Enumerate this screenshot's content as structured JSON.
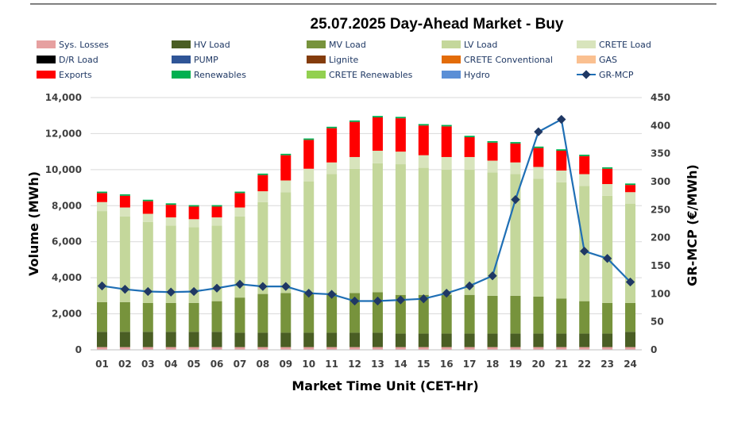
{
  "chart_data": {
    "type": "bar",
    "title": "25.07.2025  Day-Ahead Market - Buy",
    "xlabel": "Market Time Unit (CET-Hr)",
    "ylabel": "Volume (MWh)",
    "y2label": "GR-MCP (€/MWh)",
    "ylim": [
      0,
      14000
    ],
    "y2lim": [
      0,
      450
    ],
    "yticks": [
      "0",
      "2,000",
      "4,000",
      "6,000",
      "8,000",
      "10,000",
      "12,000",
      "14,000"
    ],
    "y2ticks": [
      "0",
      "50",
      "100",
      "150",
      "200",
      "250",
      "300",
      "350",
      "400",
      "450"
    ],
    "categories": [
      "01",
      "02",
      "03",
      "04",
      "05",
      "06",
      "07",
      "08",
      "09",
      "10",
      "11",
      "12",
      "13",
      "14",
      "15",
      "16",
      "17",
      "18",
      "19",
      "20",
      "21",
      "22",
      "23",
      "24"
    ],
    "legend": [
      {
        "name": "Sys. Losses",
        "color": "#e6a0a0",
        "kind": "box"
      },
      {
        "name": "HV Load",
        "color": "#4a5e24",
        "kind": "box"
      },
      {
        "name": "MV Load",
        "color": "#77933c",
        "kind": "box"
      },
      {
        "name": "LV Load",
        "color": "#c4d79b",
        "kind": "box"
      },
      {
        "name": "CRETE Load",
        "color": "#d8e4bc",
        "kind": "box"
      },
      {
        "name": "D/R Load",
        "color": "#000000",
        "kind": "box"
      },
      {
        "name": "PUMP",
        "color": "#2f5597",
        "kind": "box"
      },
      {
        "name": "Lignite",
        "color": "#843c0c",
        "kind": "box"
      },
      {
        "name": "CRETE Conventional",
        "color": "#e36c09",
        "kind": "box"
      },
      {
        "name": "GAS",
        "color": "#fac090",
        "kind": "box"
      },
      {
        "name": "Exports",
        "color": "#ff0000",
        "kind": "box"
      },
      {
        "name": "Renewables",
        "color": "#00b050",
        "kind": "box"
      },
      {
        "name": "CRETE Renewables",
        "color": "#92d050",
        "kind": "box"
      },
      {
        "name": "Hydro",
        "color": "#5b8fd6",
        "kind": "box"
      },
      {
        "name": "GR-MCP",
        "color": "#1f6fb5",
        "kind": "line"
      }
    ],
    "series": [
      {
        "name": "Sys. Losses",
        "color": "#e6a0a0",
        "values": [
          150,
          150,
          150,
          150,
          150,
          150,
          150,
          150,
          150,
          150,
          150,
          150,
          150,
          150,
          150,
          150,
          150,
          150,
          150,
          150,
          150,
          150,
          150,
          150
        ]
      },
      {
        "name": "HV Load",
        "color": "#4a5e24",
        "values": [
          850,
          850,
          850,
          850,
          850,
          850,
          800,
          800,
          800,
          800,
          800,
          800,
          800,
          750,
          750,
          750,
          750,
          750,
          750,
          750,
          750,
          750,
          750,
          850
        ]
      },
      {
        "name": "MV Load",
        "color": "#77933c",
        "values": [
          1650,
          1650,
          1600,
          1600,
          1600,
          1700,
          1950,
          2150,
          2200,
          2200,
          2200,
          2200,
          2250,
          2150,
          2150,
          2150,
          2150,
          2100,
          2100,
          2050,
          1950,
          1800,
          1700,
          1600
        ]
      },
      {
        "name": "LV Load",
        "color": "#c4d79b",
        "values": [
          5050,
          4750,
          4500,
          4300,
          4200,
          4200,
          4500,
          5100,
          5600,
          6200,
          6600,
          6900,
          7150,
          7250,
          7050,
          6950,
          6950,
          6850,
          6750,
          6550,
          6450,
          6400,
          5950,
          5500
        ]
      },
      {
        "name": "CRETE Load",
        "color": "#d8e4bc",
        "values": [
          500,
          500,
          450,
          450,
          450,
          450,
          500,
          600,
          650,
          700,
          650,
          650,
          700,
          700,
          700,
          700,
          700,
          650,
          650,
          650,
          650,
          650,
          650,
          650
        ]
      },
      {
        "name": "Exports",
        "color": "#ff0000",
        "values": [
          500,
          650,
          700,
          700,
          700,
          600,
          800,
          900,
          1400,
          1600,
          1900,
          1950,
          1850,
          1850,
          1650,
          1700,
          1100,
          1000,
          1050,
          1050,
          1100,
          1000,
          850,
          400
        ]
      },
      {
        "name": "Renewables",
        "color": "#00b050",
        "values": [
          80,
          80,
          80,
          80,
          80,
          80,
          80,
          80,
          80,
          80,
          80,
          80,
          80,
          80,
          80,
          80,
          80,
          80,
          80,
          80,
          80,
          80,
          80,
          80
        ]
      }
    ],
    "line": {
      "name": "GR-MCP",
      "color": "#1f6fb5",
      "values": [
        114,
        108,
        104,
        103,
        104,
        110,
        117,
        113,
        113,
        101,
        99,
        87,
        87,
        89,
        91,
        101,
        114,
        132,
        268,
        389,
        411,
        176,
        163,
        121
      ]
    }
  }
}
